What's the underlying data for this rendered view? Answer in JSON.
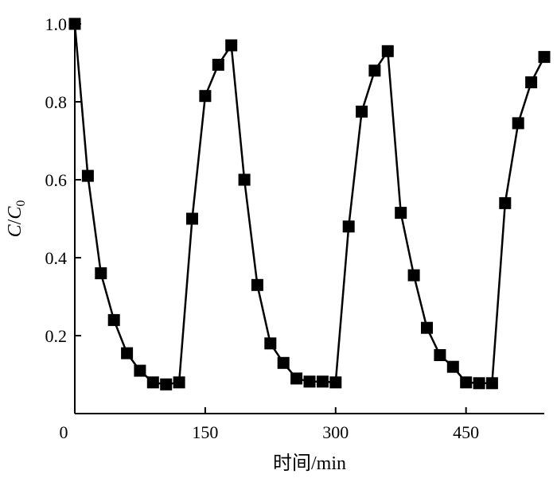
{
  "chart_data": {
    "type": "line",
    "xlabel": "时间/min",
    "ylabel_main": "C",
    "ylabel_sep": "/",
    "ylabel_denom": "C",
    "ylabel_sub": "0",
    "xlim": [
      0,
      540
    ],
    "ylim": [
      0,
      1.0
    ],
    "xticks": [
      0,
      150,
      300,
      450
    ],
    "xtick_labels": [
      "0",
      "150",
      "300",
      "450"
    ],
    "yticks": [
      0.2,
      0.4,
      0.6,
      0.8,
      1.0
    ],
    "ytick_labels": [
      "0.2",
      "0.4",
      "0.6",
      "0.8",
      "1.0"
    ],
    "grid": false,
    "marker": "square",
    "series": [
      {
        "x": [
          0,
          15,
          30,
          45,
          60,
          75,
          90,
          105,
          120,
          135,
          150,
          165,
          180,
          195,
          210,
          225,
          240,
          255,
          270,
          285,
          300,
          315,
          330,
          345,
          360,
          375,
          390,
          405,
          420,
          435,
          450,
          465,
          480,
          495,
          510,
          525,
          540
        ],
        "y": [
          1.0,
          0.61,
          0.36,
          0.24,
          0.155,
          0.11,
          0.08,
          0.075,
          0.08,
          0.5,
          0.815,
          0.895,
          0.945,
          0.6,
          0.33,
          0.18,
          0.13,
          0.09,
          0.082,
          0.082,
          0.08,
          0.48,
          0.775,
          0.88,
          0.93,
          0.515,
          0.355,
          0.22,
          0.15,
          0.12,
          0.08,
          0.078,
          0.078,
          0.54,
          0.745,
          0.85,
          0.915
        ]
      }
    ]
  }
}
